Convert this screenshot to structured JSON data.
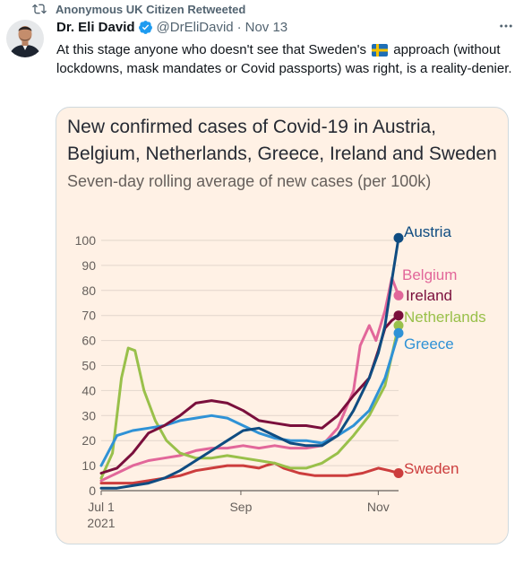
{
  "retweet": {
    "label": "Anonymous UK Citizen Retweeted",
    "icon": "retweet-icon"
  },
  "tweet": {
    "name": "Dr. Eli David",
    "handle": "@DrEliDavid",
    "separator": "·",
    "date": "Nov 13",
    "text_before_flag": "At this stage anyone who doesn't see that Sweden's",
    "text_after_flag": "approach (without lockdowns, mask mandates or Covid passports) was right, is a reality-denier.",
    "flag_icon": "sweden-flag-icon",
    "verified_icon": "verified-badge-icon",
    "more_icon": "more-options-icon"
  },
  "colors": {
    "card_bg": "#fff1e5",
    "verified": "#1d9bf0",
    "Austria": "#0f4c81",
    "Belgium": "#e2679a",
    "Ireland": "#7a0f3c",
    "Netherlands": "#99c04a",
    "Greece": "#2f92d6",
    "Sweden": "#cc3d3d"
  },
  "chart_data": {
    "type": "line",
    "title": "New confirmed cases of Covid-19 in Austria, Belgium, Netherlands, Greece, Ireland and Sweden",
    "subtitle": "Seven-day rolling average of new cases (per 100k)",
    "ylim": [
      0,
      100
    ],
    "y_ticks": [
      0,
      10,
      20,
      30,
      40,
      50,
      60,
      70,
      80,
      90,
      100
    ],
    "xlim": [
      "2021-07-01",
      "2021-11-10"
    ],
    "x_ticks": [
      {
        "date": "2021-07-01",
        "label": "Jul 1",
        "sublabel": "2021"
      },
      {
        "date": "2021-09-01",
        "label": "Sep",
        "sublabel": ""
      },
      {
        "date": "2021-11-01",
        "label": "Nov",
        "sublabel": ""
      }
    ],
    "grid": true,
    "legend": "direct labels at line ends",
    "series": [
      {
        "name": "Sweden",
        "points": [
          [
            "2021-07-01",
            3
          ],
          [
            "2021-07-08",
            3
          ],
          [
            "2021-07-15",
            3
          ],
          [
            "2021-07-22",
            4
          ],
          [
            "2021-07-29",
            5
          ],
          [
            "2021-08-05",
            6
          ],
          [
            "2021-08-12",
            8
          ],
          [
            "2021-08-19",
            9
          ],
          [
            "2021-08-26",
            10
          ],
          [
            "2021-09-02",
            10
          ],
          [
            "2021-09-09",
            9
          ],
          [
            "2021-09-12",
            10
          ],
          [
            "2021-09-16",
            11
          ],
          [
            "2021-09-20",
            9
          ],
          [
            "2021-09-27",
            7
          ],
          [
            "2021-10-04",
            6
          ],
          [
            "2021-10-11",
            6
          ],
          [
            "2021-10-18",
            6
          ],
          [
            "2021-10-25",
            7
          ],
          [
            "2021-11-01",
            9
          ],
          [
            "2021-11-06",
            8
          ],
          [
            "2021-11-10",
            7
          ]
        ]
      },
      {
        "name": "Belgium",
        "points": [
          [
            "2021-07-01",
            4
          ],
          [
            "2021-07-08",
            7
          ],
          [
            "2021-07-15",
            10
          ],
          [
            "2021-07-22",
            12
          ],
          [
            "2021-07-29",
            13
          ],
          [
            "2021-08-05",
            14
          ],
          [
            "2021-08-12",
            16
          ],
          [
            "2021-08-19",
            17
          ],
          [
            "2021-08-26",
            17
          ],
          [
            "2021-09-02",
            18
          ],
          [
            "2021-09-09",
            17
          ],
          [
            "2021-09-16",
            18
          ],
          [
            "2021-09-23",
            17
          ],
          [
            "2021-09-30",
            17
          ],
          [
            "2021-10-07",
            18
          ],
          [
            "2021-10-14",
            25
          ],
          [
            "2021-10-21",
            40
          ],
          [
            "2021-10-24",
            58
          ],
          [
            "2021-10-28",
            66
          ],
          [
            "2021-10-31",
            60
          ],
          [
            "2021-11-04",
            72
          ],
          [
            "2021-11-07",
            85
          ],
          [
            "2021-11-10",
            78
          ]
        ]
      },
      {
        "name": "Netherlands",
        "points": [
          [
            "2021-07-01",
            5
          ],
          [
            "2021-07-06",
            15
          ],
          [
            "2021-07-10",
            45
          ],
          [
            "2021-07-13",
            57
          ],
          [
            "2021-07-16",
            56
          ],
          [
            "2021-07-20",
            40
          ],
          [
            "2021-07-25",
            28
          ],
          [
            "2021-07-30",
            20
          ],
          [
            "2021-08-05",
            15
          ],
          [
            "2021-08-12",
            13
          ],
          [
            "2021-08-19",
            13
          ],
          [
            "2021-08-26",
            14
          ],
          [
            "2021-09-02",
            13
          ],
          [
            "2021-09-09",
            12
          ],
          [
            "2021-09-16",
            11
          ],
          [
            "2021-09-23",
            9
          ],
          [
            "2021-09-30",
            9
          ],
          [
            "2021-10-07",
            11
          ],
          [
            "2021-10-14",
            15
          ],
          [
            "2021-10-21",
            22
          ],
          [
            "2021-10-28",
            30
          ],
          [
            "2021-11-04",
            42
          ],
          [
            "2021-11-10",
            66
          ]
        ]
      },
      {
        "name": "Greece",
        "points": [
          [
            "2021-07-01",
            10
          ],
          [
            "2021-07-08",
            22
          ],
          [
            "2021-07-15",
            24
          ],
          [
            "2021-07-22",
            25
          ],
          [
            "2021-07-29",
            26
          ],
          [
            "2021-08-05",
            28
          ],
          [
            "2021-08-12",
            29
          ],
          [
            "2021-08-19",
            30
          ],
          [
            "2021-08-26",
            29
          ],
          [
            "2021-09-02",
            26
          ],
          [
            "2021-09-09",
            23
          ],
          [
            "2021-09-16",
            21
          ],
          [
            "2021-09-23",
            20
          ],
          [
            "2021-09-30",
            20
          ],
          [
            "2021-10-07",
            19
          ],
          [
            "2021-10-14",
            22
          ],
          [
            "2021-10-21",
            26
          ],
          [
            "2021-10-28",
            32
          ],
          [
            "2021-11-04",
            45
          ],
          [
            "2021-11-10",
            63
          ]
        ]
      },
      {
        "name": "Ireland",
        "points": [
          [
            "2021-07-01",
            7
          ],
          [
            "2021-07-08",
            9
          ],
          [
            "2021-07-15",
            15
          ],
          [
            "2021-07-22",
            23
          ],
          [
            "2021-07-29",
            26
          ],
          [
            "2021-08-05",
            30
          ],
          [
            "2021-08-12",
            35
          ],
          [
            "2021-08-19",
            36
          ],
          [
            "2021-08-26",
            35
          ],
          [
            "2021-09-02",
            32
          ],
          [
            "2021-09-09",
            28
          ],
          [
            "2021-09-16",
            27
          ],
          [
            "2021-09-23",
            26
          ],
          [
            "2021-09-30",
            26
          ],
          [
            "2021-10-07",
            25
          ],
          [
            "2021-10-14",
            30
          ],
          [
            "2021-10-21",
            38
          ],
          [
            "2021-10-28",
            45
          ],
          [
            "2021-11-01",
            56
          ],
          [
            "2021-11-04",
            65
          ],
          [
            "2021-11-07",
            68
          ],
          [
            "2021-11-10",
            70
          ]
        ]
      },
      {
        "name": "Austria",
        "points": [
          [
            "2021-07-01",
            1
          ],
          [
            "2021-07-08",
            1
          ],
          [
            "2021-07-15",
            2
          ],
          [
            "2021-07-22",
            3
          ],
          [
            "2021-07-29",
            5
          ],
          [
            "2021-08-05",
            8
          ],
          [
            "2021-08-12",
            12
          ],
          [
            "2021-08-19",
            16
          ],
          [
            "2021-08-26",
            20
          ],
          [
            "2021-09-02",
            24
          ],
          [
            "2021-09-09",
            25
          ],
          [
            "2021-09-16",
            22
          ],
          [
            "2021-09-23",
            19
          ],
          [
            "2021-09-30",
            18
          ],
          [
            "2021-10-07",
            18
          ],
          [
            "2021-10-14",
            22
          ],
          [
            "2021-10-21",
            32
          ],
          [
            "2021-10-28",
            45
          ],
          [
            "2021-11-01",
            55
          ],
          [
            "2021-11-04",
            66
          ],
          [
            "2021-11-07",
            84
          ],
          [
            "2021-11-10",
            101
          ]
        ]
      }
    ],
    "labels": [
      {
        "series": "Austria",
        "text": "Austria",
        "value": 101
      },
      {
        "series": "Belgium",
        "text": "Belgium",
        "value": 78
      },
      {
        "series": "Ireland",
        "text": "Ireland",
        "value": 70
      },
      {
        "series": "Netherlands",
        "text": "Netherlands",
        "value": 66
      },
      {
        "series": "Greece",
        "text": "Greece",
        "value": 63
      },
      {
        "series": "Sweden",
        "text": "Sweden",
        "value": 7
      }
    ]
  }
}
